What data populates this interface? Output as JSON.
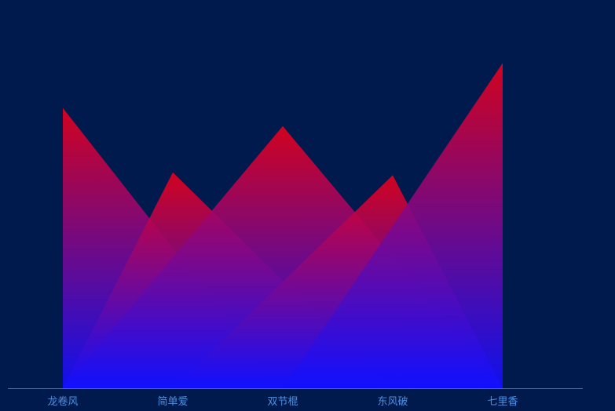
{
  "page": {
    "background": "#001a4d"
  },
  "chart_data": {
    "type": "area",
    "style": "pictorial-triangle",
    "categories": [
      "龙卷风",
      "简单爱",
      "双节棍",
      "东风破",
      "七里香"
    ],
    "peaks": [
      {
        "category_index": 0,
        "value": 100
      },
      {
        "category_index": 1,
        "value": 77
      },
      {
        "category_index": 2,
        "value": 93.5
      },
      {
        "category_index": 3,
        "value": 76
      },
      {
        "category_index": 4,
        "value": 116
      }
    ],
    "ylim": [
      0,
      128
    ],
    "gradient": {
      "top": "#e8001a",
      "bottom": "#1010ff"
    },
    "fill_opacity": 0.9,
    "axis_color": "#3a6fd1",
    "tick_label_color": "#4a90e2",
    "grid": false,
    "legend": "none"
  }
}
